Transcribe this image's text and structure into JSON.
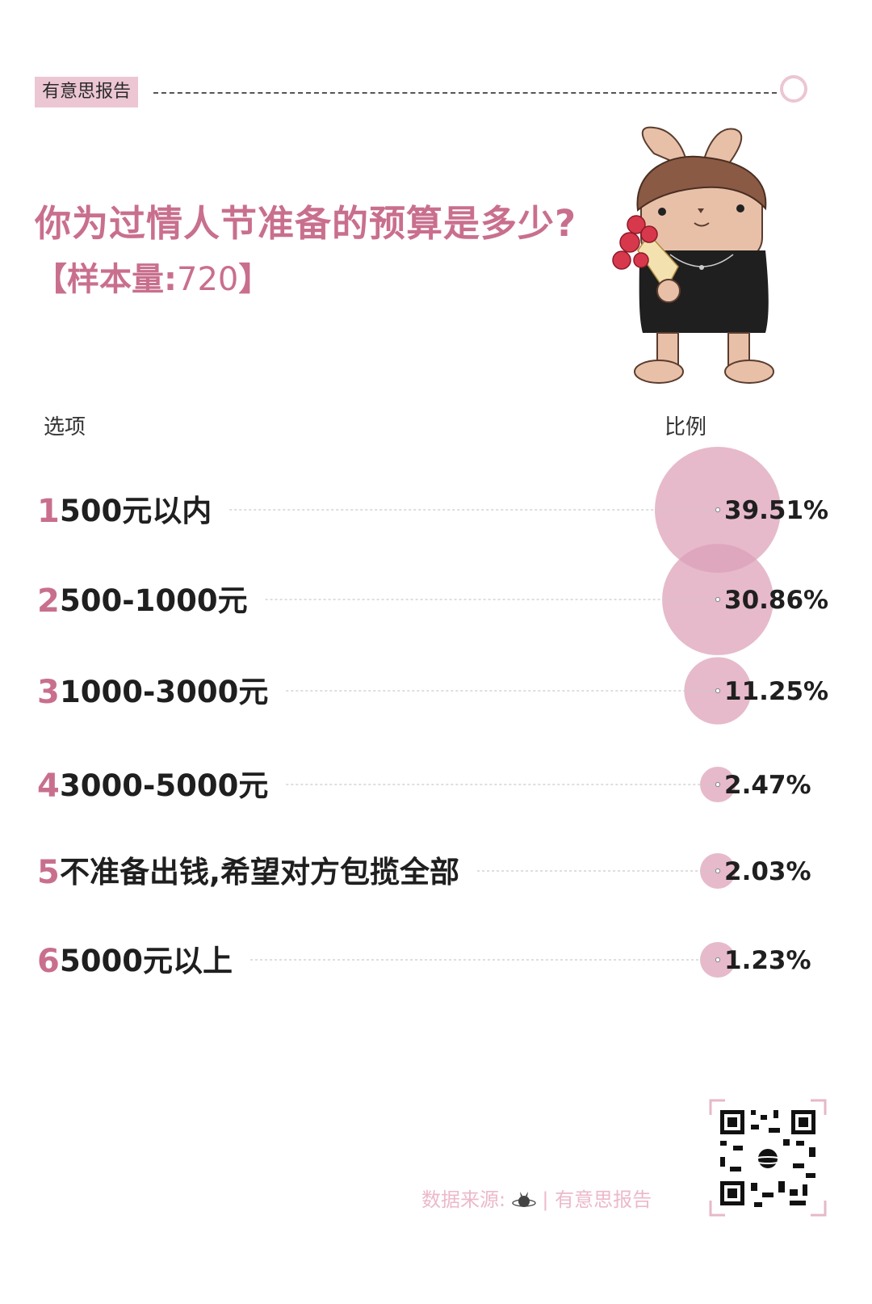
{
  "header": {
    "brand_tag": "有意思报告"
  },
  "title": "你为过情人节准备的预算是多少?",
  "sample": {
    "prefix": "【样本量:",
    "value": "720",
    "suffix": "】"
  },
  "columns": {
    "option": "选项",
    "ratio": "比例"
  },
  "colors": {
    "accent": "#c96f8e",
    "bubble": "#dca0b7",
    "tag_bg": "#ecc6d3",
    "source_text": "#ecb9c9"
  },
  "icons": {
    "mascot": "rabbit-mascot-with-roses-icon",
    "source_logo": "planet-rabbit-icon",
    "qr": "qr-code-icon"
  },
  "chart_data": {
    "type": "bubble",
    "categories": [
      "1",
      "2",
      "3",
      "4",
      "5",
      "6"
    ],
    "labels": [
      "500元以内",
      "500-1000元",
      "1000-3000元",
      "3000-5000元",
      "不准备出钱,希望对方包揽全部",
      "5000元以上"
    ],
    "values": [
      39.51,
      30.86,
      11.25,
      2.47,
      2.03,
      1.23
    ],
    "value_labels": [
      "39.51%",
      "30.86%",
      "11.25%",
      "2.47%",
      "2.03%",
      "1.23%"
    ]
  },
  "footer": {
    "source_label": "数据来源:",
    "source_divider": "|",
    "source_name": "有意思报告"
  }
}
